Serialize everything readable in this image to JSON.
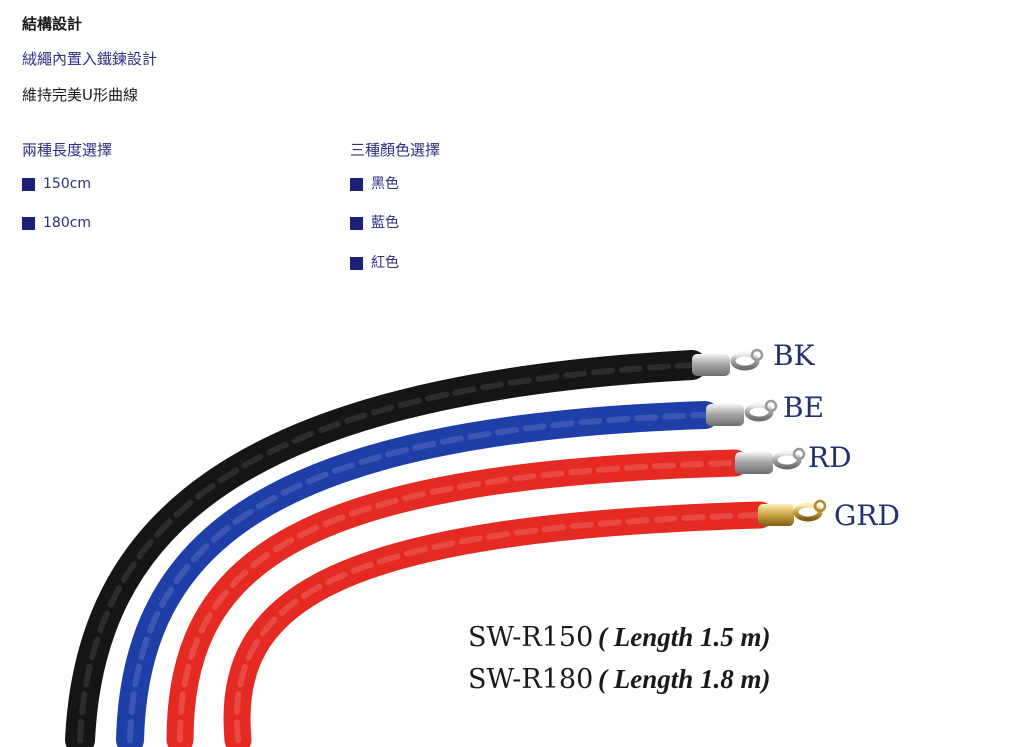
{
  "structure": {
    "title": "結構設計",
    "line1": "絨繩內置入鐵鍊設計",
    "line2": "維持完美U形曲線"
  },
  "length_options": {
    "heading": "兩種長度選擇",
    "items": [
      "150cm",
      "180cm"
    ]
  },
  "color_options": {
    "heading": "三種顏色選擇",
    "items": [
      "黑色",
      "藍色",
      "紅色"
    ]
  },
  "product_image": {
    "rope_labels": [
      "BK",
      "BE",
      "RD",
      "GRD"
    ],
    "rope_colors": [
      "#151515",
      "#1f3fa8",
      "#e42a22",
      "#e42a22"
    ],
    "models": [
      {
        "code": "SW-R150",
        "length": "( Length 1.5 m)"
      },
      {
        "code": "SW-R180",
        "length": "( Length 1.8 m)"
      }
    ]
  }
}
